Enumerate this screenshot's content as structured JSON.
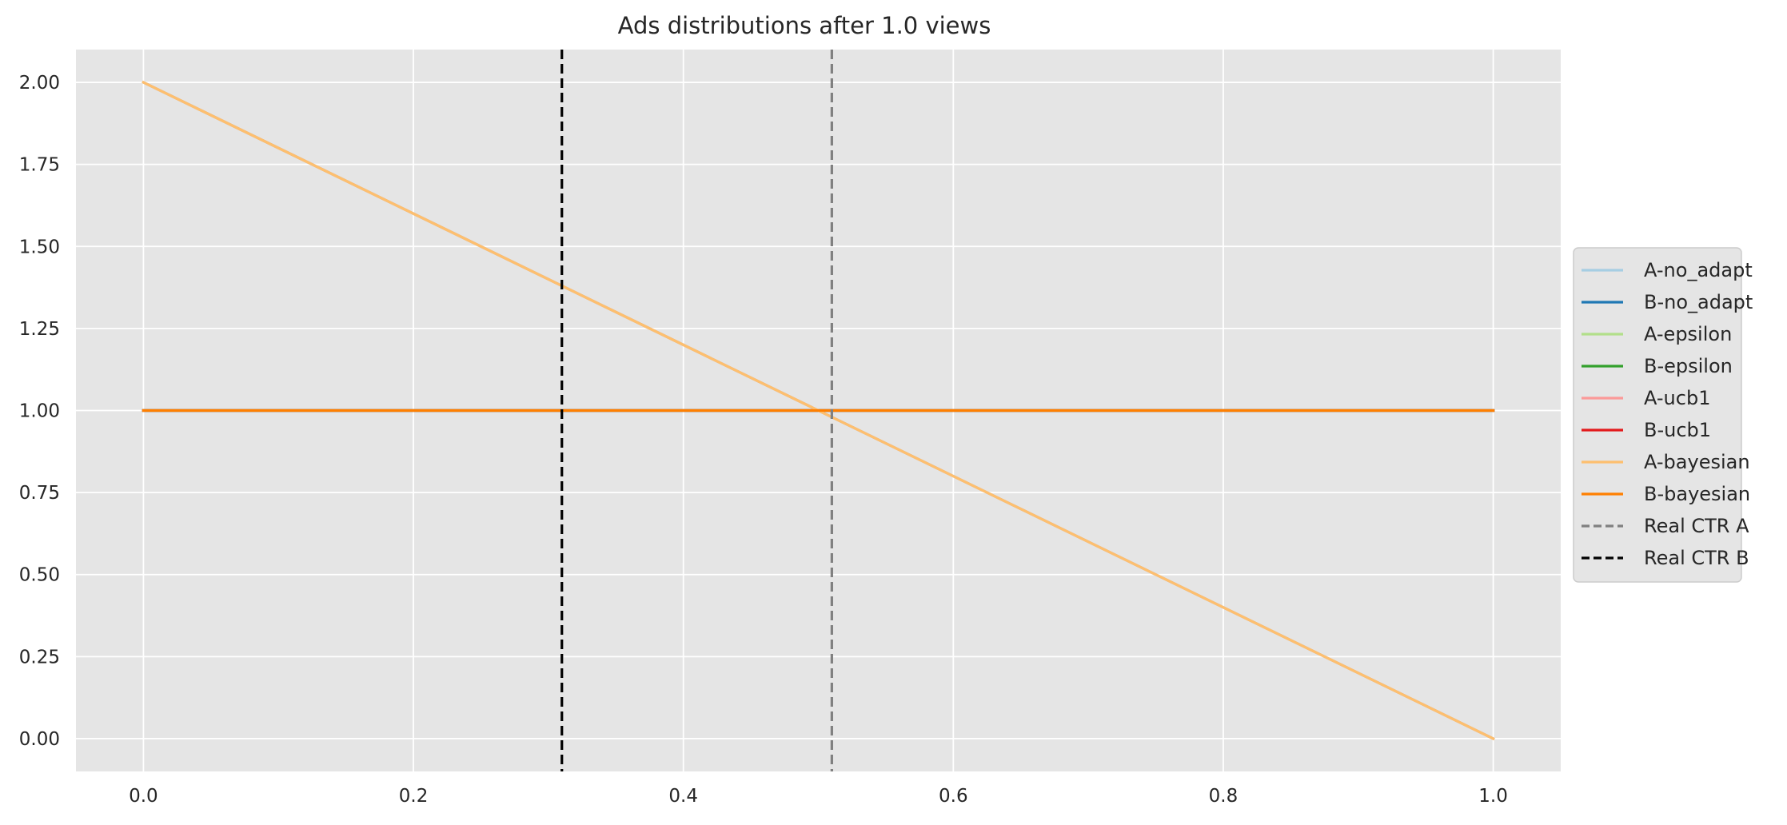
{
  "chart_data": {
    "type": "line",
    "title": "Ads distributions after 1.0 views",
    "xlabel": "",
    "ylabel": "",
    "xlim": [
      -0.05,
      1.05
    ],
    "ylim": [
      -0.1,
      2.1
    ],
    "xticks": [
      0.0,
      0.2,
      0.4,
      0.6,
      0.8,
      1.0
    ],
    "xtick_labels": [
      "0.0",
      "0.2",
      "0.4",
      "0.6",
      "0.8",
      "1.0"
    ],
    "yticks": [
      0.0,
      0.25,
      0.5,
      0.75,
      1.0,
      1.25,
      1.5,
      1.75,
      2.0
    ],
    "ytick_labels": [
      "0.00",
      "0.25",
      "0.50",
      "0.75",
      "1.00",
      "1.25",
      "1.50",
      "1.75",
      "2.00"
    ],
    "grid": true,
    "legend_position": "right, outside",
    "background_color": "#e5e5e5",
    "series": [
      {
        "name": "A-no_adapt",
        "color": "#a6cee3",
        "style": "solid",
        "x": [
          0.0,
          1.0
        ],
        "y": [
          2.0,
          0.0
        ]
      },
      {
        "name": "B-no_adapt",
        "color": "#1f78b4",
        "style": "solid",
        "x": [
          0.0,
          1.0
        ],
        "y": [
          1.0,
          1.0
        ]
      },
      {
        "name": "A-epsilon",
        "color": "#b2df8a",
        "style": "solid",
        "x": [
          0.0,
          1.0
        ],
        "y": [
          2.0,
          0.0
        ]
      },
      {
        "name": "B-epsilon",
        "color": "#33a02c",
        "style": "solid",
        "x": [
          0.0,
          1.0
        ],
        "y": [
          1.0,
          1.0
        ]
      },
      {
        "name": "A-ucb1",
        "color": "#fb9a99",
        "style": "solid",
        "x": [
          0.0,
          1.0
        ],
        "y": [
          2.0,
          0.0
        ]
      },
      {
        "name": "B-ucb1",
        "color": "#e31a1c",
        "style": "solid",
        "x": [
          0.0,
          1.0
        ],
        "y": [
          1.0,
          1.0
        ]
      },
      {
        "name": "A-bayesian",
        "color": "#fdbf6f",
        "style": "solid",
        "x": [
          0.0,
          1.0
        ],
        "y": [
          2.0,
          0.0
        ]
      },
      {
        "name": "B-bayesian",
        "color": "#ff7f00",
        "style": "solid",
        "x": [
          0.0,
          1.0
        ],
        "y": [
          1.0,
          1.0
        ]
      }
    ],
    "vlines": [
      {
        "name": "Real CTR A",
        "x": 0.51,
        "color": "#808080",
        "style": "dashed"
      },
      {
        "name": "Real CTR B",
        "x": 0.31,
        "color": "#000000",
        "style": "dashed"
      }
    ]
  }
}
